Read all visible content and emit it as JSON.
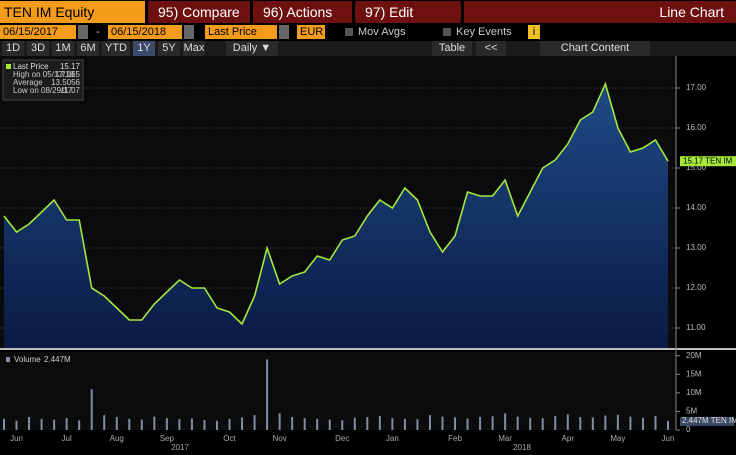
{
  "toolbar": {
    "security": "TEN IM Equity",
    "compare": "95) Compare",
    "actions": "96) Actions",
    "edit": "97) Edit",
    "view": "Line Chart",
    "start_date": "06/15/2017",
    "date_sep": "-",
    "end_date": "06/15/2018",
    "field": "Last Price",
    "currency": "EUR",
    "mov_avgs": "Mov Avgs",
    "key_events": "Key Events",
    "info": "i",
    "periods": [
      "1D",
      "3D",
      "1M",
      "6M",
      "YTD",
      "1Y",
      "5Y",
      "Max"
    ],
    "frequency": "Daily ▼",
    "table": "Table",
    "collapse": "<<",
    "chart_content": "Chart Content"
  },
  "chart_data": [
    {
      "type": "line",
      "categories": [
        null,
        "Jun",
        null,
        null,
        null,
        "Jul",
        null,
        null,
        null,
        "Aug",
        null,
        null,
        null,
        "Sep",
        null,
        null,
        null,
        null,
        "Oct",
        null,
        null,
        null,
        "Nov",
        null,
        null,
        null,
        null,
        "Dec",
        null,
        null,
        null,
        "Jan",
        null,
        null,
        null,
        null,
        "Feb",
        null,
        null,
        null,
        "Mar",
        null,
        null,
        null,
        null,
        "Apr",
        null,
        null,
        null,
        "May",
        null,
        null,
        null,
        "Jun"
      ],
      "years": [
        "2017",
        "2018"
      ],
      "series": [
        {
          "name": "Last Price",
          "color": "#a4e83a",
          "values": [
            13.8,
            13.4,
            13.6,
            13.9,
            14.2,
            13.7,
            13.7,
            12.0,
            11.8,
            11.5,
            11.2,
            11.2,
            11.6,
            11.9,
            12.2,
            12.0,
            12.0,
            11.5,
            11.4,
            11.1,
            11.8,
            13.0,
            12.1,
            12.3,
            12.4,
            12.8,
            12.7,
            13.2,
            13.3,
            13.8,
            14.2,
            14.0,
            14.5,
            14.2,
            13.4,
            12.9,
            13.3,
            14.4,
            14.3,
            14.3,
            14.7,
            13.8,
            14.4,
            15.0,
            15.2,
            15.6,
            16.2,
            16.4,
            17.1,
            16.0,
            15.4,
            15.5,
            15.7,
            15.17
          ]
        }
      ],
      "legend_value": 15.17,
      "stats": [
        {
          "label": "High on 05/17/18",
          "value": 17.165
        },
        {
          "label": "Average",
          "value": 13.5056
        },
        {
          "label": "Low on 08/29/17",
          "value": 11.07
        }
      ],
      "last_tag": "15.17 TEN IM",
      "ylim": [
        10.5,
        17.8
      ],
      "yticks": [
        {
          "value": 11,
          "label": "11.00"
        },
        {
          "value": 12,
          "label": "12.00"
        },
        {
          "value": 13,
          "label": "13.00"
        },
        {
          "value": 14,
          "label": "14.00"
        },
        {
          "value": 15,
          "label": "15.00"
        },
        {
          "value": 16,
          "label": "16.00"
        },
        {
          "value": 17,
          "label": "17.00"
        }
      ],
      "grid": true
    },
    {
      "type": "bar",
      "series": [
        {
          "name": "Volume",
          "color": "#7f8da8",
          "values": [
            3,
            2.5,
            3.5,
            3,
            2.8,
            3.2,
            2.6,
            11,
            4,
            3.5,
            3,
            2.8,
            3.6,
            3.2,
            2.9,
            3.1,
            2.7,
            2.5,
            3,
            3.4,
            4,
            19,
            4.5,
            3.5,
            3.2,
            3,
            2.8,
            2.6,
            3.3,
            3.5,
            3.8,
            3.2,
            3,
            2.9,
            4,
            3.6,
            3.4,
            3.1,
            3.5,
            3.7,
            4.5,
            3.6,
            3.3,
            3.2,
            3.8,
            4.2,
            3.5,
            3.4,
            3.9,
            4.1,
            3.6,
            3.3,
            3.8,
            2.447
          ]
        }
      ],
      "legend_value_label": "2.447M",
      "last_tag": "2.447M TEN IM",
      "ylim": [
        0,
        21
      ],
      "yticks": [
        {
          "value": 0,
          "label": "0"
        },
        {
          "value": 5,
          "label": "5M"
        },
        {
          "value": 10,
          "label": "10M"
        },
        {
          "value": 15,
          "label": "15M"
        },
        {
          "value": 20,
          "label": "20M"
        }
      ]
    }
  ]
}
